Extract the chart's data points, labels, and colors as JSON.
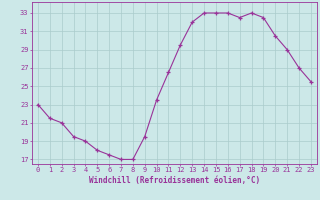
{
  "x": [
    0,
    1,
    2,
    3,
    4,
    5,
    6,
    7,
    8,
    9,
    10,
    11,
    12,
    13,
    14,
    15,
    16,
    17,
    18,
    19,
    20,
    21,
    22,
    23
  ],
  "y": [
    23,
    21.5,
    21,
    19.5,
    19,
    18,
    17.5,
    17,
    17,
    19.5,
    23.5,
    26.5,
    29.5,
    32,
    33,
    33,
    33,
    32.5,
    33,
    32.5,
    30.5,
    29,
    27,
    25.5
  ],
  "line_color": "#993399",
  "marker": "+",
  "bg_color": "#cce8e8",
  "grid_color": "#aacccc",
  "yticks": [
    17,
    19,
    21,
    23,
    25,
    27,
    29,
    31,
    33
  ],
  "xtick_labels": [
    "0",
    "1",
    "2",
    "3",
    "4",
    "5",
    "6",
    "7",
    "8",
    "9",
    "10",
    "11",
    "12",
    "13",
    "14",
    "15",
    "16",
    "17",
    "18",
    "19",
    "20",
    "21",
    "22",
    "23"
  ],
  "xlabel": "Windchill (Refroidissement éolien,°C)",
  "xlim": [
    -0.5,
    23.5
  ],
  "ylim": [
    16.5,
    34.2
  ],
  "tick_color": "#993399",
  "axis_color": "#993399",
  "label_fontsize": 5.5,
  "tick_fontsize": 5.0
}
